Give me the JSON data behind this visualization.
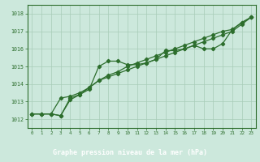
{
  "x": [
    0,
    1,
    2,
    3,
    4,
    5,
    6,
    7,
    8,
    9,
    10,
    11,
    12,
    13,
    14,
    15,
    16,
    17,
    18,
    19,
    20,
    21,
    22,
    23
  ],
  "line1": [
    1012.3,
    1012.3,
    1012.3,
    1012.2,
    1013.2,
    1013.4,
    1013.7,
    1015.0,
    1015.3,
    1015.3,
    1015.1,
    1015.1,
    1015.2,
    1015.4,
    1015.9,
    1015.9,
    1016.0,
    1016.2,
    1016.0,
    1016.0,
    1016.3,
    1017.1,
    1017.5,
    1017.8
  ],
  "line2": [
    1012.3,
    1012.3,
    1012.3,
    1013.2,
    1013.3,
    1013.5,
    1013.8,
    1014.2,
    1014.5,
    1014.7,
    1015.0,
    1015.2,
    1015.4,
    1015.6,
    1015.8,
    1016.0,
    1016.2,
    1016.4,
    1016.6,
    1016.8,
    1017.0,
    1017.1,
    1017.5,
    1017.8
  ],
  "line3": [
    1012.3,
    1012.3,
    1012.3,
    1012.2,
    1013.1,
    1013.4,
    1013.8,
    1014.2,
    1014.4,
    1014.6,
    1014.8,
    1015.0,
    1015.2,
    1015.4,
    1015.6,
    1015.8,
    1016.0,
    1016.2,
    1016.4,
    1016.6,
    1016.8,
    1017.0,
    1017.4,
    1017.8
  ],
  "ylim": [
    1011.5,
    1018.5
  ],
  "yticks": [
    1012,
    1013,
    1014,
    1015,
    1016,
    1017,
    1018
  ],
  "xticks": [
    0,
    1,
    2,
    3,
    4,
    5,
    6,
    7,
    8,
    9,
    10,
    11,
    12,
    13,
    14,
    15,
    16,
    17,
    18,
    19,
    20,
    21,
    22,
    23
  ],
  "line_color": "#2d6e2d",
  "bg_color": "#cce8dc",
  "grid_color": "#a8ccb8",
  "xlabel": "Graphe pression niveau de la mer (hPa)",
  "xlabel_bg": "#3a7a3a",
  "xlabel_text_color": "#ffffff",
  "tick_color": "#2d6e2d",
  "axis_color": "#2d6e2d",
  "spine_color": "#2d6e2d"
}
